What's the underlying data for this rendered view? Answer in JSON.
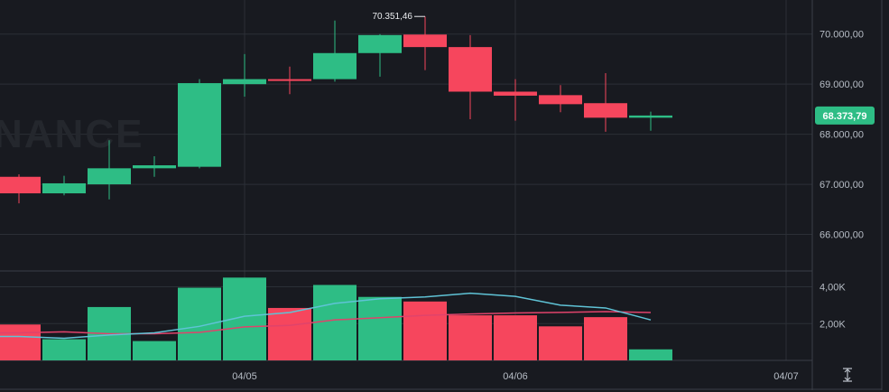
{
  "watermark": "BINANCE",
  "colors": {
    "background": "#181a20",
    "grid": "#2b2f36",
    "up": "#2ebd85",
    "down": "#f6465d",
    "ma_fast": "#5fc3d6",
    "ma_slow": "#e0436b",
    "axis_text": "#b7bdc6"
  },
  "price_axis": {
    "ticks": [
      70000,
      69000,
      68000,
      67000,
      66000
    ],
    "tick_labels": [
      "70.000,00",
      "69.000,00",
      "68.000,00",
      "67.000,00",
      "66.000,00"
    ]
  },
  "volume_axis": {
    "ticks": [
      4000,
      2000
    ],
    "tick_labels": [
      "4,00K",
      "2,00K"
    ]
  },
  "time_axis": {
    "labels": [
      "04/05",
      "04/06",
      "04/07"
    ]
  },
  "current_price": {
    "value": 68373.79,
    "label": "68.373,79"
  },
  "high_marker": {
    "value": 70351.46,
    "label": "70.351,46"
  },
  "axis_icon": "auto-scale-icon",
  "chart_data": {
    "type": "candlestick",
    "candles": [
      {
        "o": 67150,
        "h": 67200,
        "l": 66620,
        "c": 66820
      },
      {
        "o": 66820,
        "h": 67170,
        "l": 66780,
        "c": 67020
      },
      {
        "o": 67000,
        "h": 67880,
        "l": 66700,
        "c": 67320
      },
      {
        "o": 67320,
        "h": 67560,
        "l": 67150,
        "c": 67380
      },
      {
        "o": 67350,
        "h": 69100,
        "l": 67320,
        "c": 69020
      },
      {
        "o": 69000,
        "h": 69600,
        "l": 68750,
        "c": 69100
      },
      {
        "o": 69100,
        "h": 69350,
        "l": 68800,
        "c": 69090
      },
      {
        "o": 69100,
        "h": 70270,
        "l": 69050,
        "c": 69620
      },
      {
        "o": 69620,
        "h": 70000,
        "l": 69150,
        "c": 69980
      },
      {
        "o": 69990,
        "h": 70351.46,
        "l": 69280,
        "c": 69740
      },
      {
        "o": 69740,
        "h": 69980,
        "l": 68300,
        "c": 68850
      },
      {
        "o": 68850,
        "h": 69100,
        "l": 68270,
        "c": 68770
      },
      {
        "o": 68780,
        "h": 68980,
        "l": 68440,
        "c": 68600
      },
      {
        "o": 68620,
        "h": 69220,
        "l": 68050,
        "c": 68330
      },
      {
        "o": 68330,
        "h": 68450,
        "l": 68070,
        "c": 68373.79
      }
    ],
    "volume": [
      1950,
      1150,
      2900,
      1050,
      3950,
      4500,
      2850,
      4100,
      3450,
      3200,
      2450,
      2450,
      1850,
      2350,
      600
    ],
    "ma_fast": [
      1300,
      1200,
      1380,
      1500,
      1850,
      2400,
      2600,
      3100,
      3350,
      3450,
      3650,
      3480,
      3000,
      2850,
      2200
    ],
    "ma_slow": [
      1500,
      1550,
      1450,
      1450,
      1520,
      1820,
      1900,
      2200,
      2320,
      2450,
      2520,
      2580,
      2610,
      2650,
      2600
    ],
    "price_range": [
      65270,
      70680
    ],
    "volume_range": [
      0,
      4860
    ]
  }
}
